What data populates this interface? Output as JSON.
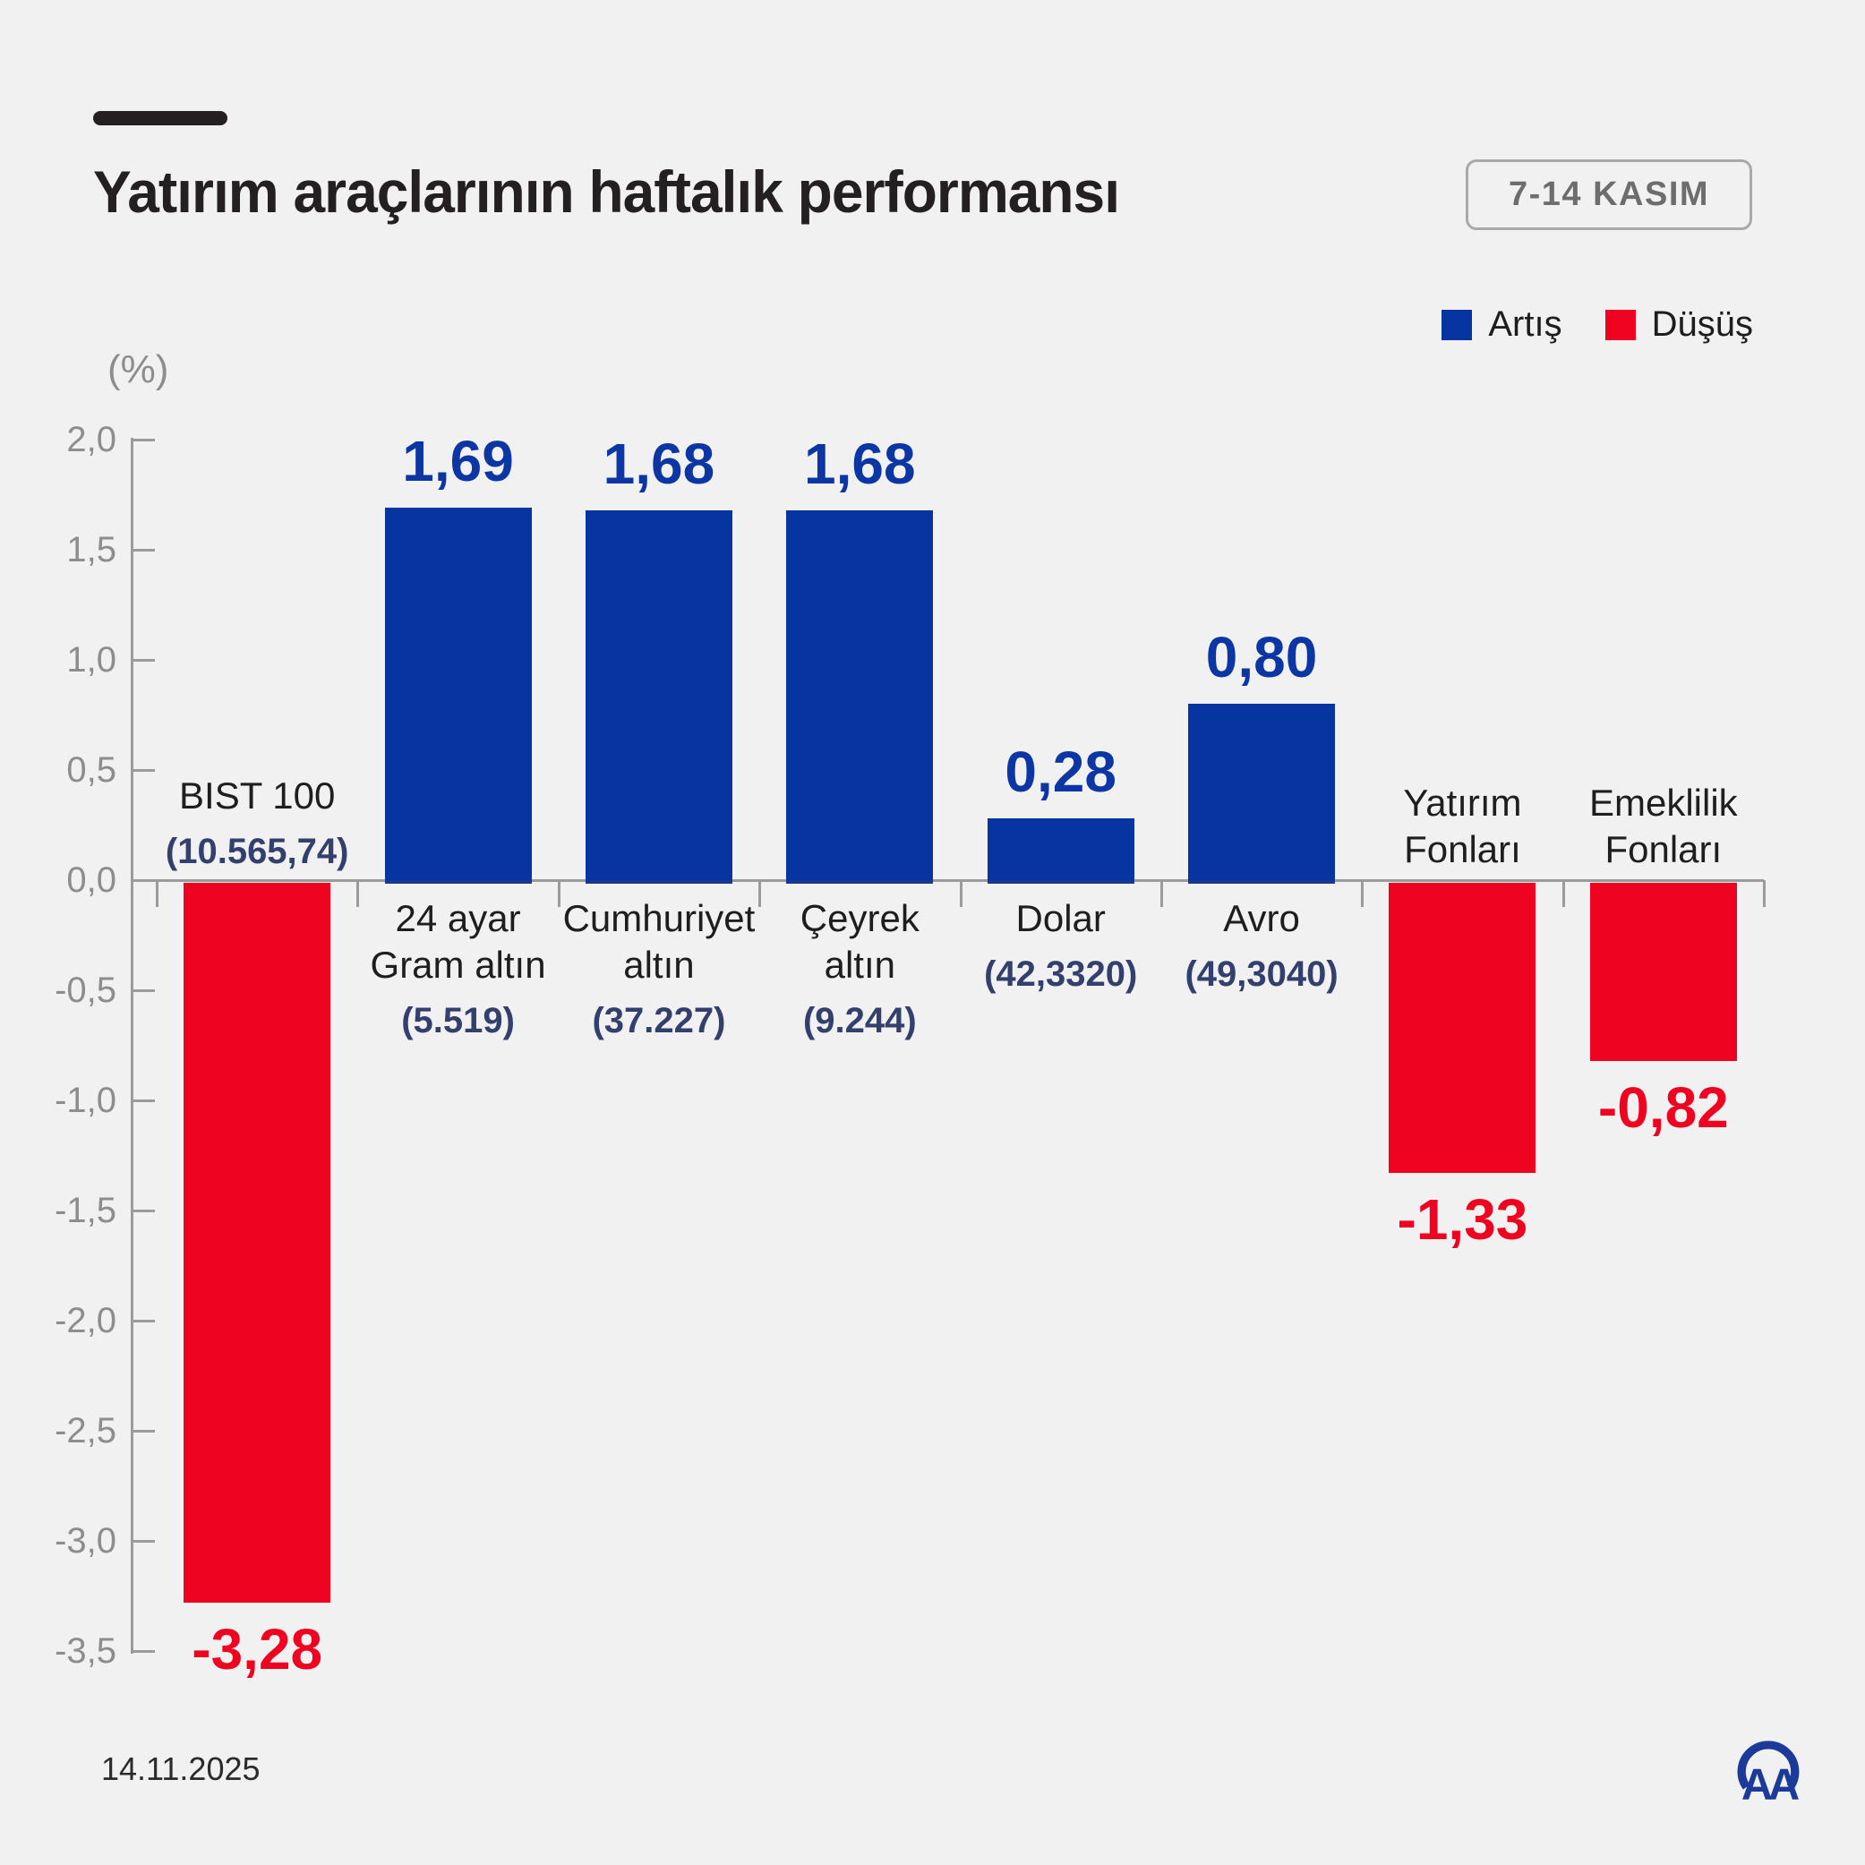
{
  "header": {
    "title": "Yatırım araçlarının haftalık performansı",
    "badge": "7-14 KASIM"
  },
  "legend": {
    "up_label": "Artış",
    "down_label": "Düşüş"
  },
  "footer": {
    "date": "14.11.2025",
    "logo": "AA"
  },
  "colors": {
    "up": "#0634a1",
    "down": "#ee0420",
    "up_text": "#0c36a4",
    "down_text": "#ee0420",
    "axis": "#9b9b9b",
    "tick_text": "#8d8d8d",
    "cat_text": "#1e1e1e",
    "sub_text": "#33406e",
    "background": "#f1f1f2"
  },
  "chart_data": {
    "type": "bar",
    "title": "Yatırım araçlarının haftalık performansı",
    "period": "7-14 KASIM",
    "unit_label": "(%)",
    "ylabel": "(%)",
    "ylim": [
      -3.5,
      2.0
    ],
    "grid": false,
    "legend_position": "top-right",
    "yticks": [
      {
        "value": 2.0,
        "label": "2,0"
      },
      {
        "value": 1.5,
        "label": "1,5"
      },
      {
        "value": 1.0,
        "label": "1,0"
      },
      {
        "value": 0.5,
        "label": "0,5"
      },
      {
        "value": 0.0,
        "label": "0,0"
      },
      {
        "value": -0.5,
        "label": "-0,5"
      },
      {
        "value": -1.0,
        "label": "-1,0"
      },
      {
        "value": -1.5,
        "label": "-1,5"
      },
      {
        "value": -2.0,
        "label": "-2,0"
      },
      {
        "value": -2.5,
        "label": "-2,5"
      },
      {
        "value": -3.0,
        "label": "-3,0"
      },
      {
        "value": -3.5,
        "label": "-3,5"
      }
    ],
    "categories": [
      "BIST 100",
      "24 ayar Gram altın",
      "Cumhuriyet altın",
      "Çeyrek altın",
      "Dolar",
      "Avro",
      "Yatırım Fonları",
      "Emeklilik Fonları"
    ],
    "bars": [
      {
        "id": "bist-100",
        "name_lines": [
          "BIST 100"
        ],
        "sub": "(10.565,74)",
        "value": -3.28,
        "value_label": "-3,28",
        "direction": "down"
      },
      {
        "id": "gram-altin",
        "name_lines": [
          "24 ayar",
          "Gram altın"
        ],
        "sub": "(5.519)",
        "value": 1.69,
        "value_label": "1,69",
        "direction": "up"
      },
      {
        "id": "cumhuriyet-altin",
        "name_lines": [
          "Cumhuriyet",
          "altın"
        ],
        "sub": "(37.227)",
        "value": 1.68,
        "value_label": "1,68",
        "direction": "up"
      },
      {
        "id": "ceyrek-altin",
        "name_lines": [
          "Çeyrek",
          "altın"
        ],
        "sub": "(9.244)",
        "value": 1.68,
        "value_label": "1,68",
        "direction": "up"
      },
      {
        "id": "dolar",
        "name_lines": [
          "Dolar"
        ],
        "sub": "(42,3320)",
        "value": 0.28,
        "value_label": "0,28",
        "direction": "up"
      },
      {
        "id": "avro",
        "name_lines": [
          "Avro"
        ],
        "sub": "(49,3040)",
        "value": 0.8,
        "value_label": "0,80",
        "direction": "up"
      },
      {
        "id": "yatirim-fonlari",
        "name_lines": [
          "Yatırım",
          "Fonları"
        ],
        "sub": null,
        "value": -1.33,
        "value_label": "-1,33",
        "direction": "down"
      },
      {
        "id": "emeklilik-fonlari",
        "name_lines": [
          "Emeklilik",
          "Fonları"
        ],
        "sub": null,
        "value": -0.82,
        "value_label": "-0,82",
        "direction": "down"
      }
    ]
  }
}
